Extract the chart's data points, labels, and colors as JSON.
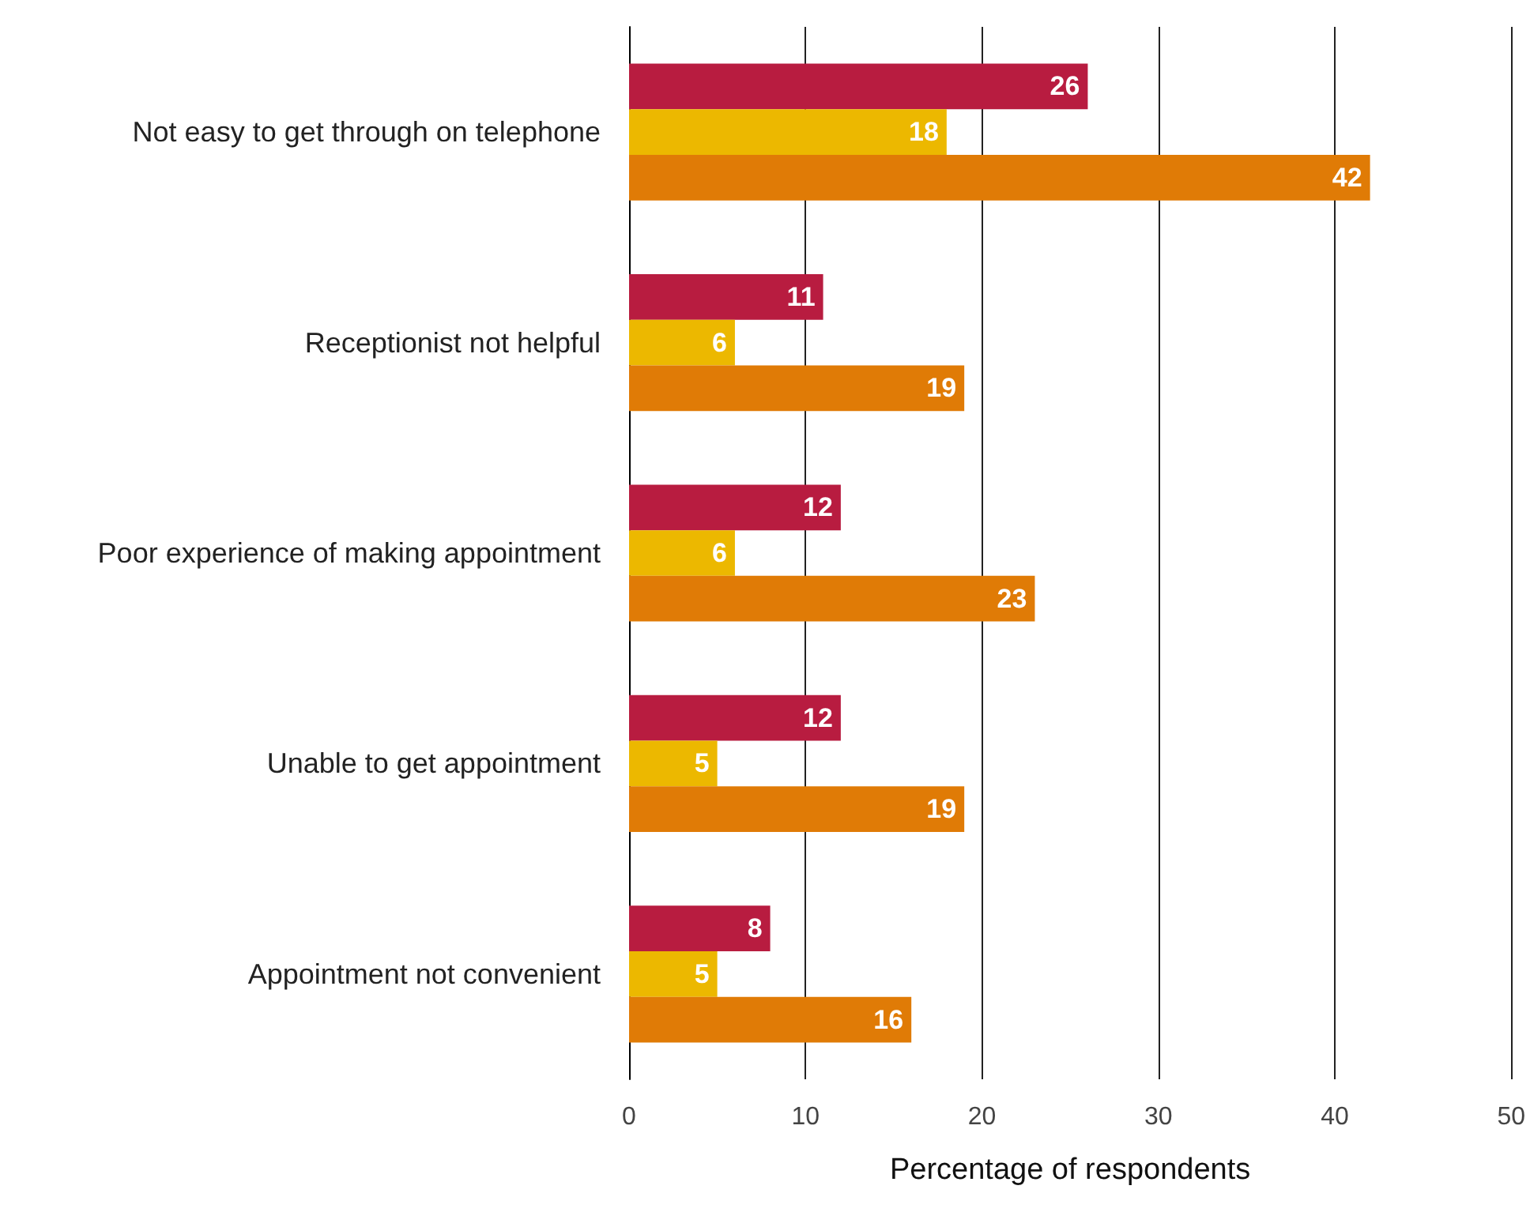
{
  "chart_data": {
    "type": "bar",
    "orientation": "horizontal",
    "xlabel": "Percentage of respondents",
    "categories": [
      "Not easy to get through on telephone",
      "Receptionist not helpful",
      "Poor experience of making appointment",
      "Unable to get appointment",
      "Appointment not convenient"
    ],
    "series": [
      {
        "color": "#b81c40",
        "values": [
          26,
          11,
          12,
          12,
          8
        ]
      },
      {
        "color": "#ecb800",
        "values": [
          18,
          6,
          6,
          5,
          5
        ]
      },
      {
        "color": "#e07b06",
        "values": [
          42,
          19,
          23,
          19,
          16
        ]
      }
    ],
    "xlim": [
      0,
      50
    ],
    "xticks": [
      0,
      10,
      20,
      30,
      40,
      50
    ],
    "grid": "x",
    "data_labels": true
  }
}
